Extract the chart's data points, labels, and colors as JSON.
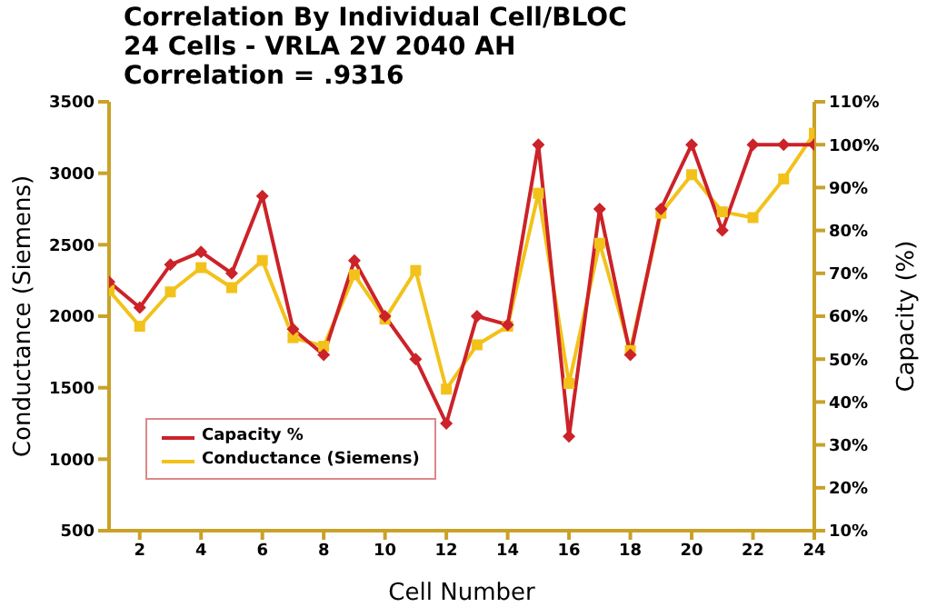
{
  "chart_data": {
    "type": "line",
    "title": "Correlation By Individual Cell/BLOC",
    "subtitle": "24 Cells - VRLA 2V 2040 AH\nCorrelation = .9316",
    "xlabel": "Cell Number",
    "ylabel": "Conductance (Siemens)",
    "y2label": "Capacity (%)",
    "x": [
      1,
      2,
      3,
      4,
      5,
      6,
      7,
      8,
      9,
      10,
      11,
      12,
      13,
      14,
      15,
      16,
      17,
      18,
      19,
      20,
      21,
      22,
      23,
      24
    ],
    "xlim": [
      1,
      24
    ],
    "xticks": [
      2,
      4,
      6,
      8,
      10,
      12,
      14,
      16,
      18,
      20,
      22,
      24
    ],
    "ylim": [
      500,
      3500
    ],
    "yticks": [
      500,
      1000,
      1500,
      2000,
      2500,
      3000,
      3500
    ],
    "y2lim": [
      10,
      110
    ],
    "y2ticks": [
      {
        "value": 10,
        "label": "10%"
      },
      {
        "value": 20,
        "label": "20%"
      },
      {
        "value": 30,
        "label": "30%"
      },
      {
        "value": 40,
        "label": "40%"
      },
      {
        "value": 50,
        "label": "50%"
      },
      {
        "value": 60,
        "label": "60%"
      },
      {
        "value": 70,
        "label": "70%"
      },
      {
        "value": 80,
        "label": "80%"
      },
      {
        "value": 90,
        "label": "90%"
      },
      {
        "value": 100,
        "label": "100%"
      },
      {
        "value": 110,
        "label": "110%"
      }
    ],
    "grid": false,
    "legend": "bottom left",
    "line_style": "solid",
    "series": [
      {
        "name": "Capacity %",
        "color": "#cc2229",
        "axis": "y2",
        "marker": "diamond",
        "values": [
          68,
          62,
          72,
          75,
          70,
          88,
          57,
          51,
          73,
          60,
          50,
          35,
          60,
          58,
          100,
          32,
          85,
          51,
          85,
          100,
          80,
          100,
          100,
          100
        ]
      },
      {
        "name": "Conductance (Siemens)",
        "color": "#f2c21b",
        "axis": "y",
        "marker": "square",
        "values": [
          2180,
          1930,
          2170,
          2340,
          2200,
          2390,
          1850,
          1790,
          2290,
          1980,
          2320,
          1490,
          1800,
          1930,
          2860,
          1530,
          2510,
          1760,
          2720,
          2990,
          2730,
          2690,
          2960,
          3280
        ]
      }
    ]
  }
}
